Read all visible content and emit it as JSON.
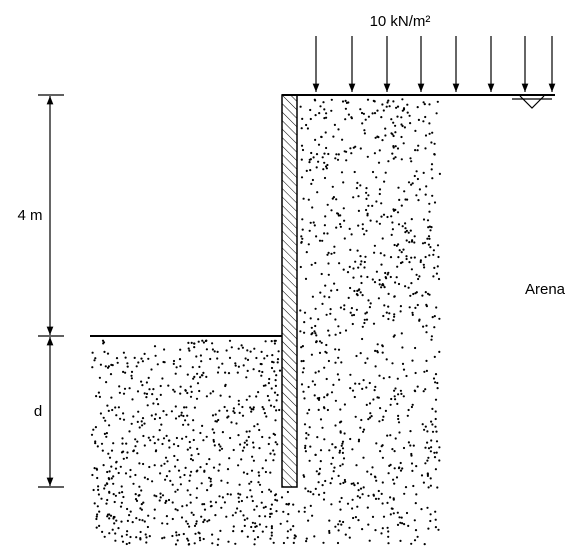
{
  "load": {
    "label": "10 kN/m²"
  },
  "dimensions": [
    {
      "label": "4 m"
    },
    {
      "label": "d"
    }
  ],
  "soil": {
    "label": "Arena"
  }
}
